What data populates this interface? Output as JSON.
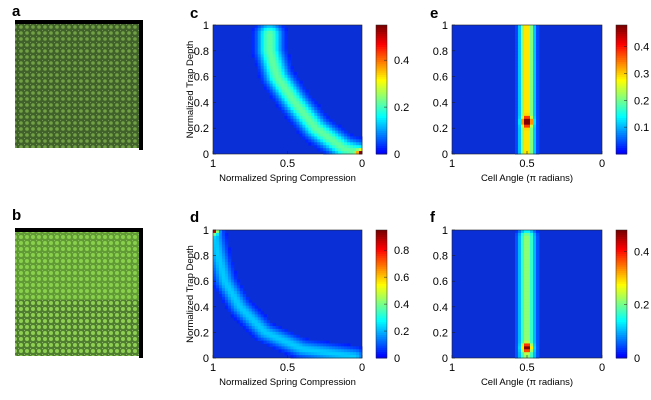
{
  "colormap": {
    "stops": [
      "#00008f",
      "#0000ff",
      "#0080ff",
      "#00ffff",
      "#80ff80",
      "#ffff00",
      "#ff8000",
      "#ff0000",
      "#800000"
    ],
    "background": "#0a2fd6"
  },
  "photos": [
    {
      "label": "a",
      "description": "green-textured-sample-a"
    },
    {
      "label": "b",
      "description": "green-textured-sample-b"
    }
  ],
  "chart_data": [
    {
      "panel": "c",
      "type": "heatmap",
      "xlabel": "Normalized Spring Compression",
      "ylabel": "Normalized Trap Depth",
      "x_range": [
        1,
        0
      ],
      "x_ticks": [
        "1",
        "0.5",
        "0"
      ],
      "ylim": [
        0,
        1
      ],
      "y_ticks": [
        "0",
        "0.2",
        "0.4",
        "0.6",
        "0.8",
        "1"
      ],
      "colorbar": {
        "range": [
          0,
          0.55
        ],
        "ticks": [
          "0",
          "0.2",
          "0.4"
        ]
      },
      "ridge": {
        "points": [
          [
            0.62,
            0.93
          ],
          [
            0.62,
            0.8
          ],
          [
            0.57,
            0.6
          ],
          [
            0.45,
            0.4
          ],
          [
            0.31,
            0.2
          ],
          [
            0.12,
            0.04
          ],
          [
            0.0,
            0.0
          ]
        ],
        "peak": 0.22,
        "width": 0.055,
        "hotspot": [
          0.0,
          0.0,
          0.55
        ]
      }
    },
    {
      "panel": "d",
      "type": "heatmap",
      "xlabel": "Normalized Spring Compression",
      "ylabel": "Normalized Trap Depth",
      "x_range": [
        1,
        0
      ],
      "x_ticks": [
        "1",
        "0.5",
        "0"
      ],
      "ylim": [
        0,
        1
      ],
      "y_ticks": [
        "0",
        "0.2",
        "0.4",
        "0.6",
        "0.8",
        "1"
      ],
      "colorbar": {
        "range": [
          0,
          0.95
        ],
        "ticks": [
          "0",
          "0.2",
          "0.4",
          "0.6",
          "0.8"
        ]
      },
      "ridge": {
        "points": [
          [
            1.0,
            1.0
          ],
          [
            0.97,
            0.82
          ],
          [
            0.92,
            0.6
          ],
          [
            0.82,
            0.4
          ],
          [
            0.65,
            0.2
          ],
          [
            0.4,
            0.07
          ],
          [
            0.05,
            0.01
          ]
        ],
        "peak": 0.22,
        "width": 0.045,
        "hotspot": [
          1.0,
          1.0,
          0.9
        ]
      }
    },
    {
      "panel": "e",
      "type": "heatmap",
      "xlabel": "Cell Angle (π radians)",
      "ylabel": "",
      "x_range": [
        1,
        0
      ],
      "x_ticks": [
        "1",
        "0.5",
        "0"
      ],
      "ylim": [
        0,
        1
      ],
      "y_ticks": [
        "0",
        "0.2",
        "0.4",
        "0.6",
        "0.8",
        "1"
      ],
      "colorbar": {
        "range": [
          0,
          0.48
        ],
        "ticks": [
          "0.1",
          "0.2",
          "0.3",
          "0.4"
        ]
      },
      "ridge": {
        "points": [
          [
            0.5,
            1.0
          ],
          [
            0.5,
            0.0
          ]
        ],
        "peak": 0.3,
        "width": 0.035,
        "hotspot": [
          0.5,
          0.25,
          0.45
        ]
      }
    },
    {
      "panel": "f",
      "type": "heatmap",
      "xlabel": "Cell Angle (π radians)",
      "ylabel": "",
      "x_range": [
        1,
        0
      ],
      "x_ticks": [
        "1",
        "0.5",
        "0"
      ],
      "ylim": [
        0,
        1
      ],
      "y_ticks": [
        "0",
        "0.2",
        "0.4",
        "0.6",
        "0.8",
        "1"
      ],
      "colorbar": {
        "range": [
          0,
          0.48
        ],
        "ticks": [
          "0",
          "0.2",
          "0.4"
        ]
      },
      "ridge": {
        "points": [
          [
            0.5,
            0.95
          ],
          [
            0.5,
            0.0
          ]
        ],
        "peak": 0.22,
        "width": 0.04,
        "hotspot": [
          0.5,
          0.08,
          0.36
        ]
      }
    }
  ]
}
